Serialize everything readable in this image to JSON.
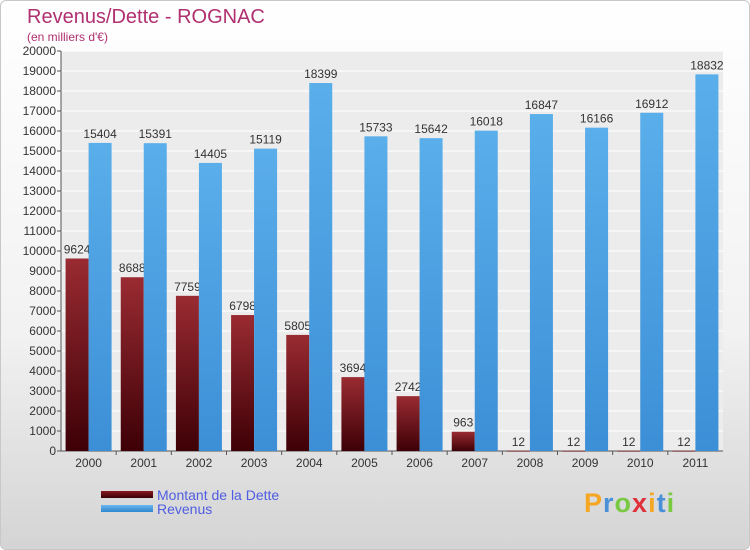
{
  "chart_data": {
    "type": "bar",
    "title": "Revenus/Dette - ROGNAC",
    "subtitle": "(en milliers d'€)",
    "categories": [
      "2000",
      "2001",
      "2002",
      "2003",
      "2004",
      "2005",
      "2006",
      "2007",
      "2008",
      "2009",
      "2010",
      "2011"
    ],
    "series": [
      {
        "name": "Montant de la Dette",
        "color": "#6b0f14",
        "values": [
          9624,
          8688,
          7759,
          6798,
          5805,
          3694,
          2742,
          963,
          12,
          12,
          12,
          12
        ],
        "labels": [
          "9624",
          "8688",
          "7759",
          "6798",
          "5805",
          "3694",
          "2742",
          "963",
          "12",
          "12",
          "12",
          "12"
        ]
      },
      {
        "name": "Revenus",
        "color": "#4ea2e2",
        "values": [
          15404,
          15391,
          14405,
          15119,
          18399,
          15733,
          15642,
          16018,
          16847,
          16166,
          16912,
          18832
        ],
        "labels": [
          "15404",
          "15391",
          "14405",
          "15119",
          "18399",
          "15733",
          "15642",
          "16018",
          "16847",
          "16166",
          "16912",
          "18832"
        ]
      }
    ],
    "ylim": [
      0,
      20000
    ],
    "yticks": [
      "0",
      "1000",
      "2000",
      "3000",
      "4000",
      "5000",
      "6000",
      "7000",
      "8000",
      "9000",
      "10000",
      "11000",
      "12000",
      "13000",
      "14000",
      "15000",
      "16000",
      "17000",
      "18000",
      "19000",
      "20000"
    ],
    "grid": true,
    "legend": "bottom-left"
  },
  "logo": {
    "letters": [
      "P",
      "r",
      "o",
      "x",
      "i",
      "t",
      "i"
    ],
    "colors": [
      "#f5a623",
      "#4a90d9",
      "#7ac943",
      "#e0303a",
      "#f5a623",
      "#4a90d9",
      "#7ac943"
    ]
  }
}
